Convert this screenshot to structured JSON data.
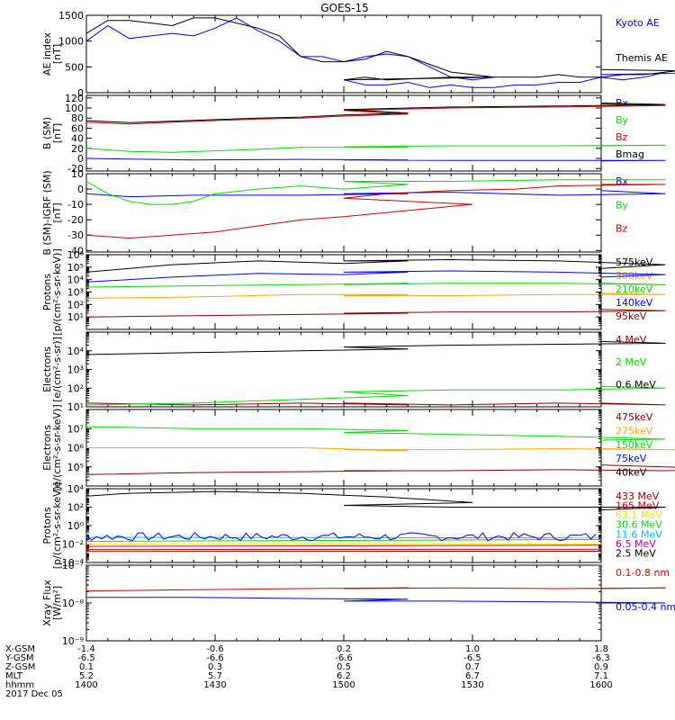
{
  "title": "GOES-15",
  "colors": {
    "black": "#000000",
    "blue": "#0000ff",
    "green": "#00dd00",
    "red": "#cc0000",
    "darkred": "#8b0000",
    "orange": "#ffa500",
    "yellow": "#e8e800",
    "cyan": "#00bfff",
    "purple": "#aa00aa"
  },
  "time_axis": {
    "range": [
      1400,
      1600
    ],
    "rows": [
      {
        "label": "X-GSM",
        "values": [
          "-1.4",
          "-0.6",
          "0.2",
          "1.0",
          "1.8"
        ]
      },
      {
        "label": "Y-GSM",
        "values": [
          "-6.5",
          "-6.6",
          "-6.6",
          "-6.5",
          "-6.3"
        ]
      },
      {
        "label": "Z-GSM",
        "values": [
          "0.1",
          "0.3",
          "0.5",
          "0.7",
          "0.9"
        ]
      },
      {
        "label": "MLT",
        "values": [
          "5.2",
          "5.7",
          "6.2",
          "6.7",
          "7.1"
        ]
      },
      {
        "label": "hhmm",
        "values": [
          "1400",
          "1430",
          "1500",
          "1530",
          "1600"
        ]
      }
    ],
    "date": "2017 Dec 05"
  },
  "chart_data": [
    {
      "id": "ae",
      "type": "line",
      "ylabel": "AE index\n[nT]",
      "scale": "linear",
      "ylim": [
        0,
        1500
      ],
      "ticks": [
        0,
        500,
        1000,
        1500
      ],
      "tick_labels": [
        "0",
        "500",
        "1000",
        "1500"
      ],
      "series": [
        {
          "name": "Kyoto AE",
          "color": "blue",
          "x": [
            1400,
            1405,
            1410,
            1415,
            1420,
            1425,
            1430,
            1435,
            1440,
            1445,
            1450,
            1455,
            1460,
            1465,
            1470,
            1475,
            1480,
            1485,
            1490,
            1495,
            1500,
            1505,
            1510,
            1515,
            1520,
            1525,
            1530,
            1535,
            1540,
            1545,
            1550,
            1555,
            1560,
            1565,
            1570,
            1575,
            1580,
            1585,
            1590,
            1595,
            1600
          ],
          "y": [
            1000,
            1300,
            1050,
            1100,
            1150,
            1100,
            1250,
            1450,
            1200,
            1000,
            700,
            700,
            600,
            700,
            750,
            700,
            500,
            300,
            250,
            300,
            250,
            150,
            150,
            200,
            100,
            150,
            100,
            100,
            150,
            150,
            200,
            200,
            300,
            250,
            300,
            400,
            450,
            350,
            450,
            400,
            350
          ]
        },
        {
          "name": "Themis AE",
          "color": "black",
          "x": [
            1400,
            1405,
            1410,
            1415,
            1420,
            1425,
            1430,
            1435,
            1440,
            1445,
            1450,
            1455,
            1460,
            1465,
            1470,
            1475,
            1480,
            1485,
            1490,
            1495,
            1500,
            1505,
            1510,
            1525,
            1530,
            1535,
            1540,
            1545,
            1550,
            1555,
            1560,
            1565,
            1570,
            1575,
            1580,
            1585,
            1590,
            1595,
            1600
          ],
          "y": [
            1150,
            1400,
            1400,
            1350,
            1300,
            1450,
            1450,
            1350,
            1250,
            1100,
            700,
            600,
            600,
            650,
            800,
            700,
            550,
            400,
            350,
            300,
            250,
            300,
            250,
            300,
            300,
            300,
            300,
            300,
            350,
            300,
            300,
            350,
            350,
            400,
            450,
            400,
            400,
            400,
            450
          ]
        }
      ]
    },
    {
      "id": "bsm",
      "type": "line",
      "ylabel": "B (SM)\n[nT]",
      "scale": "linear",
      "ylim": [
        -25,
        125
      ],
      "ticks": [
        -20,
        0,
        20,
        40,
        60,
        80,
        100,
        120
      ],
      "tick_labels": [
        "-20",
        "0",
        "20",
        "40",
        "60",
        "80",
        "100",
        "120"
      ],
      "series": [
        {
          "name": "Bx",
          "color": "blue",
          "x": [
            1400,
            1425,
            1450,
            1475,
            1500,
            1525,
            1550,
            1575,
            1600
          ],
          "y": [
            0,
            -3,
            -2,
            -3,
            -3,
            -4,
            -4,
            -4,
            -5
          ]
        },
        {
          "name": "By",
          "color": "green",
          "x": [
            1400,
            1410,
            1420,
            1430,
            1440,
            1450,
            1475,
            1500,
            1525,
            1550,
            1575,
            1600
          ],
          "y": [
            20,
            14,
            12,
            15,
            18,
            22,
            22,
            23,
            25,
            25,
            26,
            25
          ]
        },
        {
          "name": "Bz",
          "color": "red",
          "x": [
            1400,
            1410,
            1420,
            1430,
            1440,
            1450,
            1460,
            1475,
            1500,
            1525,
            1550,
            1575,
            1600
          ],
          "y": [
            72,
            68,
            72,
            75,
            78,
            80,
            84,
            88,
            95,
            100,
            102,
            105,
            108
          ]
        },
        {
          "name": "Bmag",
          "color": "black",
          "x": [
            1400,
            1410,
            1420,
            1430,
            1440,
            1450,
            1460,
            1475,
            1500,
            1525,
            1550,
            1575,
            1600
          ],
          "y": [
            75,
            71,
            74,
            77,
            80,
            82,
            86,
            90,
            97,
            102,
            104,
            107,
            110
          ]
        }
      ]
    },
    {
      "id": "bigrf",
      "type": "line",
      "ylabel": "B (SM)-IGRF (SM)\n[nT]",
      "scale": "linear",
      "ylim": [
        -41,
        10
      ],
      "ticks": [
        -40,
        -30,
        -20,
        -10,
        0,
        10
      ],
      "tick_labels": [
        "-40",
        "-30",
        "-20",
        "-10",
        "0",
        "10"
      ],
      "series": [
        {
          "name": "Bx",
          "color": "blue",
          "x": [
            1400,
            1410,
            1425,
            1450,
            1475,
            1500,
            1525,
            1550,
            1575,
            1600
          ],
          "y": [
            -3,
            -5,
            -4,
            -4,
            -3,
            -3,
            -2,
            -4,
            -3,
            -1
          ]
        },
        {
          "name": "By",
          "color": "green",
          "x": [
            1400,
            1405,
            1410,
            1415,
            1420,
            1425,
            1430,
            1440,
            1450,
            1460,
            1475,
            1500,
            1525,
            1550,
            1575,
            1600
          ],
          "y": [
            5,
            -3,
            -8,
            -10,
            -10,
            -8,
            -3,
            0,
            2,
            0,
            3,
            5,
            5,
            6,
            6,
            6
          ]
        },
        {
          "name": "Bz",
          "color": "red",
          "x": [
            1400,
            1410,
            1420,
            1430,
            1440,
            1450,
            1460,
            1475,
            1490,
            1500,
            1510,
            1525,
            1540,
            1550,
            1575,
            1600
          ],
          "y": [
            -30,
            -32,
            -30,
            -28,
            -24,
            -20,
            -18,
            -14,
            -10,
            -6,
            -3,
            -1,
            0,
            2,
            3,
            3
          ]
        }
      ]
    },
    {
      "id": "protons_low",
      "type": "line",
      "ylabel": "Protons\n[p/(cm²-s-sr-keV)]",
      "scale": "log",
      "ylim": [
        0,
        6
      ],
      "ticks": [
        1,
        2,
        3,
        4,
        5,
        6
      ],
      "tick_labels": [
        "10¹",
        "10²",
        "10³",
        "10⁴",
        "10⁵",
        "10⁶"
      ],
      "series": [
        {
          "name": "575keV",
          "color": "black",
          "x": [
            1400,
            1420,
            1440,
            1460,
            1475,
            1500,
            1525,
            1550,
            1575,
            1600
          ],
          "y": [
            4.6,
            5.2,
            5.5,
            5.3,
            5.5,
            5.5,
            5.6,
            5.5,
            5.2,
            4.9
          ]
        },
        {
          "name": "300keV",
          "color": "orange",
          "x": [
            1400,
            1425,
            1450,
            1475,
            1500,
            1525,
            1550,
            1575,
            1600
          ],
          "y": [
            2.5,
            2.6,
            2.8,
            2.8,
            2.7,
            2.7,
            2.8,
            2.8,
            2.9
          ]
        },
        {
          "name": "210keV",
          "color": "green",
          "x": [
            1400,
            1425,
            1450,
            1475,
            1500,
            1525,
            1550,
            1575,
            1600
          ],
          "y": [
            3.4,
            3.5,
            3.6,
            3.7,
            3.6,
            3.7,
            3.7,
            3.6,
            3.7
          ]
        },
        {
          "name": "140keV",
          "color": "blue",
          "x": [
            1400,
            1420,
            1440,
            1460,
            1475,
            1500,
            1525,
            1550,
            1575,
            1600
          ],
          "y": [
            3.8,
            4.2,
            4.5,
            4.4,
            4.6,
            4.6,
            4.7,
            4.6,
            4.4,
            4.2
          ]
        },
        {
          "name": "95keV",
          "color": "darkred",
          "x": [
            1400,
            1425,
            1450,
            1475,
            1500,
            1525,
            1550,
            1575,
            1600
          ],
          "y": [
            1.0,
            1.1,
            1.2,
            1.3,
            1.3,
            1.4,
            1.4,
            1.5,
            1.6
          ]
        }
      ]
    },
    {
      "id": "electrons_mev",
      "type": "line",
      "ylabel": "Electrons\n[e/(cm²-s-sr)]",
      "scale": "log",
      "ylim": [
        1,
        5
      ],
      "ticks": [
        1,
        2,
        3,
        4
      ],
      "tick_labels": [
        "10¹",
        "10²",
        "10³",
        "10⁴"
      ],
      "series": [
        {
          "name": "4 MeV",
          "color": "darkred",
          "x": [
            1400,
            1425,
            1450,
            1475,
            1500,
            1525,
            1550,
            1575,
            1600
          ],
          "y": [
            1.2,
            1.1,
            1.2,
            1.1,
            1.2,
            1.1,
            1.2,
            1.1,
            1.2
          ]
        },
        {
          "name": "2 MeV",
          "color": "green",
          "x": [
            1400,
            1425,
            1450,
            1475,
            1500,
            1525,
            1550,
            1575,
            1600
          ],
          "y": [
            1.1,
            1.2,
            1.4,
            1.6,
            1.8,
            1.9,
            1.9,
            2.0,
            2.1
          ]
        },
        {
          "name": "0.6 MeV",
          "color": "black",
          "x": [
            1400,
            1425,
            1450,
            1475,
            1500,
            1525,
            1550,
            1575,
            1600
          ],
          "y": [
            3.8,
            3.9,
            4.0,
            4.1,
            4.2,
            4.3,
            4.35,
            4.4,
            4.5
          ]
        }
      ]
    },
    {
      "id": "electrons_kev",
      "type": "line",
      "ylabel": "Electrons\n[e/(cm²-s-sr-keV)]",
      "scale": "log",
      "ylim": [
        4,
        8
      ],
      "ticks": [
        5,
        6,
        7
      ],
      "tick_labels": [
        "10⁵",
        "10⁶",
        "10⁷"
      ],
      "series": [
        {
          "name": "475keV",
          "color": "darkred",
          "x": [
            1400,
            1425,
            1450,
            1475,
            1500,
            1525,
            1550,
            1575,
            1590,
            1600
          ],
          "y": [
            4.6,
            4.7,
            4.75,
            4.8,
            4.8,
            4.8,
            4.85,
            4.8,
            4.9,
            5.1
          ]
        },
        {
          "name": "275keV",
          "color": "orange",
          "x": [
            1400,
            1425,
            1450,
            1475,
            1500,
            1525,
            1550,
            1575,
            1590,
            1600
          ],
          "y": [
            6.0,
            6.0,
            6.0,
            5.85,
            5.9,
            5.9,
            5.95,
            5.9,
            5.85,
            5.95
          ]
        },
        {
          "name": "150keV",
          "color": "green",
          "x": [
            1400,
            1425,
            1450,
            1475,
            1500,
            1525,
            1550,
            1575,
            1600
          ],
          "y": [
            7.1,
            7.0,
            7.0,
            6.9,
            6.8,
            6.7,
            6.6,
            6.45,
            6.4
          ]
        },
        {
          "name": "75keV",
          "color": "blue",
          "x": [
            1400,
            1600
          ],
          "y": [
            null,
            null
          ]
        },
        {
          "name": "40keV",
          "color": "black",
          "x": [
            1400,
            1600
          ],
          "y": [
            null,
            null
          ]
        }
      ]
    },
    {
      "id": "protons_high",
      "type": "line",
      "ylabel": "Protons\n[p/(cm²-s-sr-keV)]",
      "scale": "log",
      "ylim": [
        -4,
        4
      ],
      "ticks": [
        -4,
        -2,
        0,
        2,
        4
      ],
      "tick_labels": [
        "10⁻⁴",
        "10⁻²",
        "10⁰",
        "10²",
        "10⁴"
      ],
      "series": [
        {
          "name": "433 MeV",
          "color": "darkred",
          "x": [
            1400,
            1600
          ],
          "y": [
            -2.8,
            -2.8
          ]
        },
        {
          "name": "165 MeV",
          "color": "red",
          "x": [
            1400,
            1600
          ],
          "y": [
            -2.5,
            -2.5
          ]
        },
        {
          "name": "63.1 MeV",
          "color": "yellow",
          "x": [
            1400,
            1600
          ],
          "y": [
            -2.0,
            -2.0
          ]
        },
        {
          "name": "30.6 MeV",
          "color": "green",
          "x": [
            1400,
            1600
          ],
          "y": [
            -1.6,
            -1.6
          ]
        },
        {
          "name": "11.6 MeV",
          "color": "cyan",
          "x": [
            1400,
            1600
          ],
          "y": [
            -1.3,
            -1.3
          ]
        },
        {
          "name": "6.5 MeV",
          "color": "purple",
          "x": [
            1400,
            1600
          ],
          "y": [
            -2.2,
            -2.2
          ]
        },
        {
          "name": "2.5 MeV",
          "color": "black",
          "x": [
            1400,
            1410,
            1420,
            1430,
            1440,
            1450,
            1460,
            1470,
            1480,
            1490,
            1500,
            1525,
            1550,
            1575,
            1600
          ],
          "y": [
            3.2,
            3.5,
            3.6,
            3.7,
            3.6,
            3.5,
            3.3,
            3.1,
            2.8,
            2.5,
            2.2,
            2.0,
            2.0,
            2.0,
            1.7
          ]
        },
        {
          "name": "",
          "color": "blue",
          "noise": true,
          "x": [
            1400,
            1600
          ],
          "y": [
            -1.2,
            -1.2
          ]
        }
      ]
    },
    {
      "id": "xray",
      "type": "line",
      "ylabel": "Xray Flux\n[W/m²]",
      "scale": "log",
      "ylim": [
        -9,
        -7
      ],
      "ticks": [
        -9,
        -8,
        -7
      ],
      "tick_labels": [
        "10⁻⁹",
        "10⁻⁸",
        "10⁻⁷"
      ],
      "series": [
        {
          "name": "0.1-0.8 nm",
          "color": "red",
          "x": [
            1400,
            1425,
            1450,
            1475,
            1500,
            1525,
            1550,
            1575,
            1600
          ],
          "y": [
            -7.68,
            -7.65,
            -7.62,
            -7.6,
            -7.62,
            -7.6,
            -7.62,
            -7.6,
            -7.62
          ]
        },
        {
          "name": "0.05-0.4 nm",
          "color": "blue",
          "x": [
            1400,
            1425,
            1450,
            1475,
            1500,
            1525,
            1550,
            1575,
            1600
          ],
          "y": [
            -7.85,
            -7.85,
            -7.88,
            -7.9,
            -7.95,
            -7.95,
            -7.97,
            -8.0,
            -8.0
          ]
        }
      ]
    }
  ]
}
